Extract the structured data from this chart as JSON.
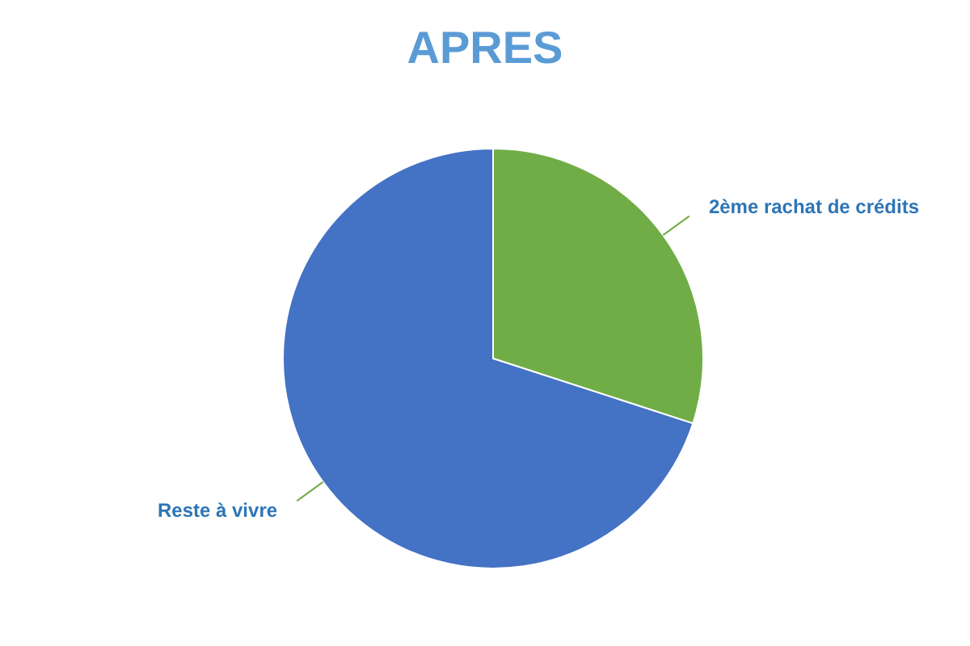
{
  "chart_data": {
    "type": "pie",
    "title": "APRES",
    "categories": [
      "2ème rachat de crédits",
      "Reste à vivre"
    ],
    "values": [
      30,
      70
    ],
    "colors": [
      "#70ad47",
      "#4472c4"
    ]
  }
}
